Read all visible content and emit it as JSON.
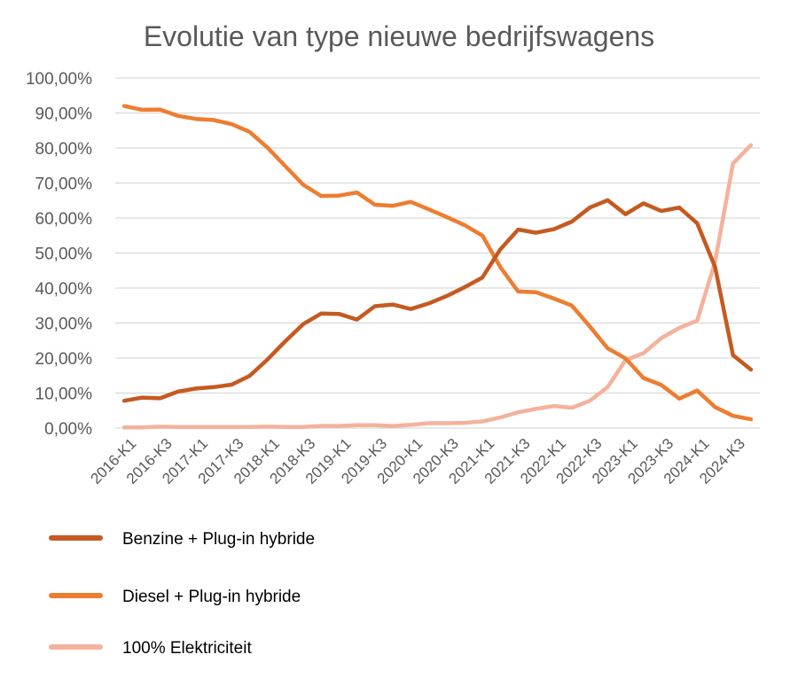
{
  "chart_data": {
    "type": "line",
    "title": "Evolutie van type nieuwe bedrijfswagens",
    "x": [
      "2016-K1",
      "2016-K2",
      "2016-K3",
      "2016-K4",
      "2017-K1",
      "2017-K2",
      "2017-K3",
      "2017-K4",
      "2018-K1",
      "2018-K2",
      "2018-K3",
      "2018-K4",
      "2019-K1",
      "2019-K2",
      "2019-K3",
      "2019-K4",
      "2020-K1",
      "2020-K2",
      "2020-K3",
      "2020-K4",
      "2021-K1",
      "2021-K2",
      "2021-K3",
      "2021-K4",
      "2022-K1",
      "2022-K2",
      "2022-K3",
      "2022-K4",
      "2023-K1",
      "2023-K2",
      "2023-K3",
      "2023-K4",
      "2024-K1",
      "2024-K2",
      "2024-K3",
      "2024-K4"
    ],
    "x_tick_labels": [
      "2016-K1",
      "2016-K3",
      "2017-K1",
      "2017-K3",
      "2018-K1",
      "2018-K3",
      "2019-K1",
      "2019-K3",
      "2020-K1",
      "2020-K3",
      "2021-K1",
      "2021-K3",
      "2022-K1",
      "2022-K3",
      "2023-K1",
      "2023-K3",
      "2024-K1",
      "2024-K3"
    ],
    "y_tick_labels": [
      "0,00%",
      "10,00%",
      "20,00%",
      "30,00%",
      "40,00%",
      "50,00%",
      "60,00%",
      "70,00%",
      "80,00%",
      "90,00%",
      "100,00%"
    ],
    "ylim": [
      0,
      100
    ],
    "grid": true,
    "legend_position": "bottom",
    "series": [
      {
        "name": "Benzine + Plug-in hybride",
        "color": "#c55a20",
        "values": [
          7.8,
          8.7,
          8.5,
          10.4,
          11.3,
          11.7,
          12.4,
          14.9,
          19.6,
          24.8,
          29.7,
          32.7,
          32.6,
          31.0,
          34.8,
          35.3,
          34.0,
          35.6,
          37.7,
          40.2,
          43.0,
          51.0,
          56.7,
          55.8,
          56.8,
          59.0,
          63.0,
          65.1,
          61.1,
          64.2,
          62.0,
          63.0,
          58.5,
          46.0,
          20.8,
          16.7
        ]
      },
      {
        "name": "Diesel + Plug-in hybride",
        "color": "#ed7d31",
        "values": [
          92.0,
          90.9,
          91.0,
          89.2,
          88.3,
          88.0,
          86.8,
          84.6,
          80.1,
          74.8,
          69.5,
          66.3,
          66.4,
          67.3,
          63.8,
          63.5,
          64.6,
          62.5,
          60.3,
          58.0,
          55.0,
          46.0,
          39.0,
          38.8,
          37.0,
          35.0,
          29.0,
          22.8,
          19.9,
          14.3,
          12.3,
          8.4,
          10.7,
          6.0,
          3.5,
          2.5
        ]
      },
      {
        "name": "100% Elektriciteit",
        "color": "#f4b29c",
        "values": [
          0.2,
          0.2,
          0.4,
          0.3,
          0.3,
          0.3,
          0.3,
          0.3,
          0.4,
          0.3,
          0.3,
          0.6,
          0.6,
          0.8,
          0.8,
          0.6,
          0.9,
          1.4,
          1.4,
          1.5,
          1.9,
          3.0,
          4.5,
          5.5,
          6.3,
          5.8,
          7.8,
          11.7,
          19.4,
          21.4,
          25.7,
          28.6,
          30.7,
          47.5,
          75.6,
          80.8
        ]
      }
    ]
  }
}
